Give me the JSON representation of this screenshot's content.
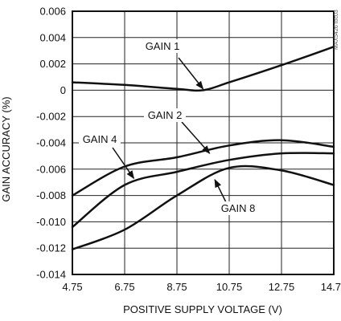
{
  "chart_data": {
    "type": "line",
    "title": "",
    "xlabel": "POSITIVE SUPPLY VOLTAGE (V)",
    "ylabel": "GAIN ACCURACY (%)",
    "xlim": [
      4.75,
      14.75
    ],
    "ylim": [
      -0.014,
      0.006
    ],
    "x_ticks": [
      "4.75",
      "6.75",
      "8.75",
      "10.75",
      "12.75",
      "14.75"
    ],
    "y_ticks": [
      "0.006",
      "0.004",
      "0.002",
      "0",
      "-0.002",
      "-0.004",
      "-0.006",
      "-0.008",
      "-0.010",
      "-0.012",
      "-0.014"
    ],
    "grid": true,
    "watermark": "MAX5426 toc03",
    "series": [
      {
        "name": "GAIN 1",
        "x": [
          4.75,
          6.75,
          8.75,
          9.75,
          10.75,
          12.75,
          14.75
        ],
        "y": [
          0.0006,
          0.0004,
          0.0001,
          0.0,
          0.0006,
          0.0019,
          0.0033
        ]
      },
      {
        "name": "GAIN 2",
        "x": [
          4.75,
          6.75,
          8.75,
          10.75,
          12.75,
          14.75
        ],
        "y": [
          -0.008,
          -0.0058,
          -0.0051,
          -0.0042,
          -0.0038,
          -0.0043
        ]
      },
      {
        "name": "GAIN 4",
        "x": [
          4.75,
          6.75,
          8.75,
          10.75,
          12.75,
          14.75
        ],
        "y": [
          -0.0104,
          -0.0072,
          -0.0062,
          -0.0053,
          -0.0048,
          -0.0048
        ]
      },
      {
        "name": "GAIN 8",
        "x": [
          4.75,
          6.75,
          8.75,
          10.75,
          12.75,
          14.75
        ],
        "y": [
          -0.0121,
          -0.0106,
          -0.008,
          -0.0059,
          -0.0061,
          -0.0072
        ]
      }
    ],
    "annotations": [
      {
        "text": "GAIN 1",
        "series": "GAIN 1",
        "target_x": 9.75,
        "target_y": 0.0001
      },
      {
        "text": "GAIN 2",
        "series": "GAIN 2",
        "target_x": 10.0,
        "target_y": -0.0048
      },
      {
        "text": "GAIN 4",
        "series": "GAIN 4",
        "target_x": 7.1,
        "target_y": -0.0067
      },
      {
        "text": "GAIN 8",
        "series": "GAIN 8",
        "target_x": 10.2,
        "target_y": -0.0068
      }
    ]
  }
}
